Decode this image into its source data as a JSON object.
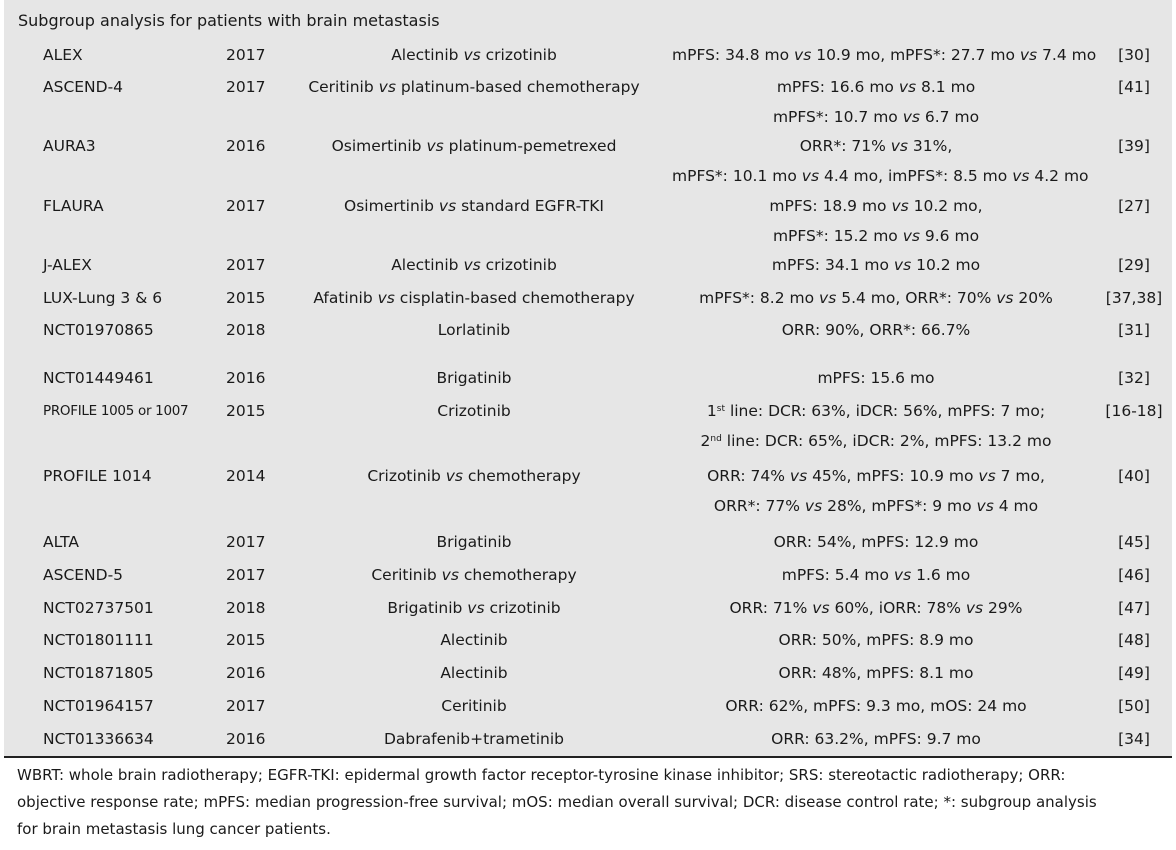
{
  "title": "Subgroup analysis for patients with brain metastasis",
  "rows": [
    {
      "trial": "ALEX",
      "year": "2017",
      "drug": "Alectinib vs crizotinib",
      "outcome": [
        "mPFS: 34.8 mo vs 10.9 mo, mPFS*: 27.7 mo vs 7.4 mo"
      ],
      "ref": "[30]"
    },
    {
      "trial": "ASCEND-4",
      "year": "2017",
      "drug": "Ceritinib vs platinum-based chemotherapy",
      "outcome": [
        "mPFS: 16.6 mo vs 8.1 mo",
        "mPFS*: 10.7 mo vs 6.7 mo"
      ],
      "ref": "[41]"
    },
    {
      "trial": "AURA3",
      "year": "2016",
      "drug": "Osimertinib vs platinum-pemetrexed",
      "outcome": [
        "ORR*: 71% vs 31%,",
        "mPFS*: 10.1 mo vs 4.4 mo, imPFS*: 8.5 mo vs 4.2 mo"
      ],
      "ref": "[39]"
    },
    {
      "trial": "FLAURA",
      "year": "2017",
      "drug": "Osimertinib vs standard EGFR-TKI",
      "outcome": [
        "mPFS: 18.9 mo vs 10.2 mo,",
        "mPFS*: 15.2 mo vs 9.6 mo"
      ],
      "ref": "[27]"
    },
    {
      "trial": "J-ALEX",
      "year": "2017",
      "drug": "Alectinib vs crizotinib",
      "outcome": [
        "mPFS: 34.1 mo vs 10.2 mo"
      ],
      "ref": "[29]"
    },
    {
      "trial": "LUX-Lung 3 & 6",
      "year": "2015",
      "drug": "Afatinib vs cisplatin-based chemotherapy",
      "outcome": [
        "mPFS*: 8.2 mo vs 5.4 mo, ORR*: 70% vs 20%"
      ],
      "ref": "[37,38]"
    },
    {
      "trial": "NCT01970865",
      "year": "2018",
      "drug": "Lorlatinib",
      "outcome": [
        "ORR: 90%, ORR*: 66.7%"
      ],
      "ref": "[31]"
    },
    {
      "trial": "NCT01449461",
      "year": "2016",
      "drug": "Brigatinib",
      "outcome": [
        "mPFS: 15.6 mo"
      ],
      "ref": "[32]"
    },
    {
      "trial": "PROFILE 1005 or 1007",
      "year": "2015",
      "drug": "Crizotinib",
      "outcome": [
        "1st line: DCR: 63%, iDCR: 56%, mPFS: 7 mo;",
        "2nd line: DCR: 65%, iDCR: 2%, mPFS: 13.2 mo"
      ],
      "ref": "[16-18]"
    },
    {
      "trial": "PROFILE 1014",
      "year": "2014",
      "drug": "Crizotinib vs chemotherapy",
      "outcome": [
        "ORR: 74% vs 45%, mPFS: 10.9 mo vs 7 mo,",
        "ORR*: 77% vs 28%, mPFS*: 9 mo vs 4 mo"
      ],
      "ref": "[40]"
    },
    {
      "trial": "ALTA",
      "year": "2017",
      "drug": "Brigatinib",
      "outcome": [
        "ORR: 54%, mPFS: 12.9 mo"
      ],
      "ref": "[45]"
    },
    {
      "trial": "ASCEND-5",
      "year": "2017",
      "drug": "Ceritinib vs chemotherapy",
      "outcome": [
        "mPFS: 5.4 mo vs 1.6 mo"
      ],
      "ref": "[46]"
    },
    {
      "trial": "NCT02737501",
      "year": "2018",
      "drug": "Brigatinib vs crizotinib",
      "outcome": [
        "ORR: 71% vs 60%, iORR: 78% vs 29%"
      ],
      "ref": "[47]"
    },
    {
      "trial": "NCT01801111",
      "year": "2015",
      "drug": "Alectinib",
      "outcome": [
        "ORR: 50%, mPFS: 8.9 mo"
      ],
      "ref": "[48]"
    },
    {
      "trial": "NCT01871805",
      "year": "2016",
      "drug": "Alectinib",
      "outcome": [
        "ORR: 48%, mPFS: 8.1 mo"
      ],
      "ref": "[49]"
    },
    {
      "trial": "NCT01964157",
      "year": "2017",
      "drug": "Ceritinib",
      "outcome": [
        "ORR: 62%, mPFS: 9.3 mo, mOS: 24 mo"
      ],
      "ref": "[50]"
    },
    {
      "trial": "NCT01336634",
      "year": "2016",
      "drug": "Dabrafenib+trametinib",
      "outcome": [
        "ORR: 63.2%, mPFS: 9.7 mo"
      ],
      "ref": "[34]"
    }
  ],
  "footnote": [
    "WBRT: whole brain radiotherapy; EGFR-TKI: epidermal growth factor receptor-tyrosine kinase inhibitor; SRS: stereotactic radiotherapy; ORR:",
    "objective response rate; mPFS: median progression-free survival; mOS: median overall survival; DCR: disease control rate; *: subgroup analysis",
    "for brain metastasis lung cancer patients."
  ]
}
